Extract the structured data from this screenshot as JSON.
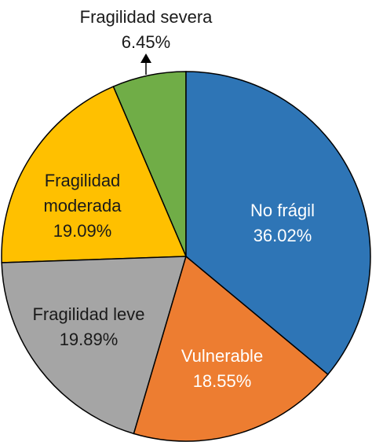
{
  "chart_data": {
    "type": "pie",
    "categories": [
      "No frágil",
      "Vulnerable",
      "Fragilidad leve",
      "Fragilidad moderada",
      "Fragilidad severa"
    ],
    "values": [
      36.02,
      18.55,
      19.89,
      19.09,
      6.45
    ],
    "value_labels": [
      "36.02%",
      "18.55%",
      "19.89%",
      "19.09%",
      "6.45%"
    ],
    "colors": [
      "#2e75b6",
      "#ed7d31",
      "#a5a5a5",
      "#ffc000",
      "#70ad47"
    ]
  }
}
